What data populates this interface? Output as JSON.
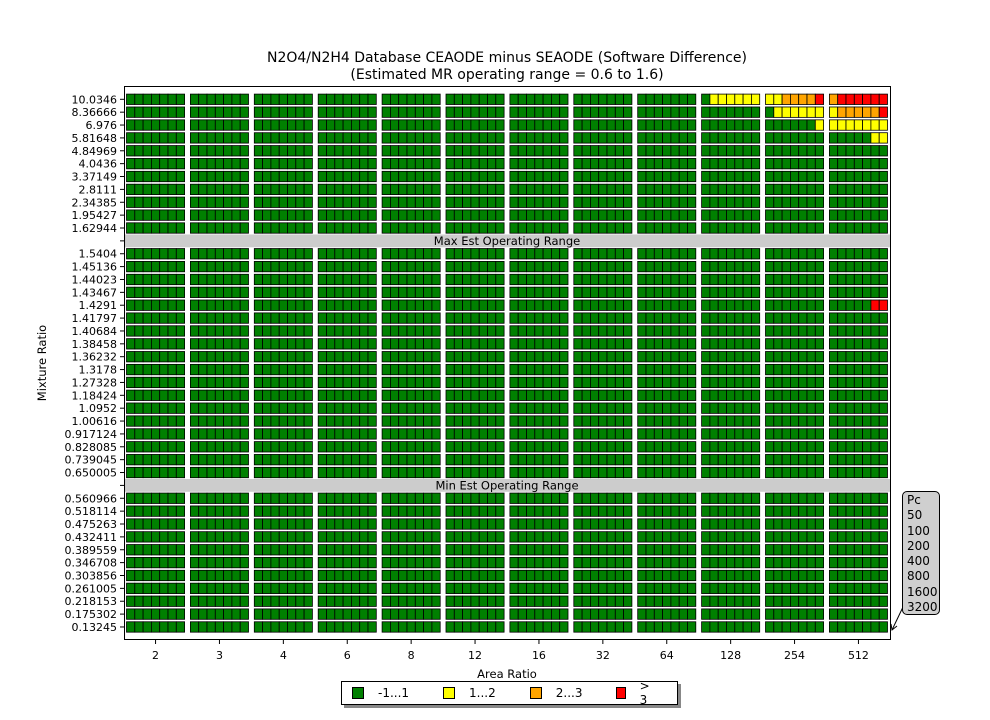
{
  "chart_data": {
    "type": "heatmap",
    "title": "N2O4/N2H4 Database CEAODE minus SEAODE (Software Difference)",
    "subtitle": "(Estimated MR operating range = 0.6 to 1.6)",
    "xlabel": "Area Ratio",
    "ylabel": "Mixture Ratio",
    "area_ratios": [
      "2",
      "3",
      "4",
      "6",
      "8",
      "12",
      "16",
      "32",
      "64",
      "128",
      "254",
      "512"
    ],
    "chamber_pressures_label": "Pc",
    "chamber_pressures": [
      "50",
      "100",
      "200",
      "400",
      "800",
      "1600",
      "3200"
    ],
    "mixture_ratio_groups": [
      [
        "10.0346",
        "8.36666",
        "6.976",
        "5.81648",
        "4.84969",
        "4.0436",
        "3.37149",
        "2.8111",
        "2.34385",
        "1.95427",
        "1.62944"
      ],
      [
        "1.5404",
        "1.45136",
        "1.44023",
        "1.43467",
        "1.4291",
        "1.41797",
        "1.40684",
        "1.38458",
        "1.36232",
        "1.3178",
        "1.27328",
        "1.18424",
        "1.0952",
        "1.00616",
        "0.917124",
        "0.828085",
        "0.739045",
        "0.650005"
      ],
      [
        "0.560966",
        "0.518114",
        "0.475263",
        "0.432411",
        "0.389559",
        "0.346708",
        "0.303856",
        "0.261005",
        "0.218153",
        "0.175302",
        "0.13245"
      ]
    ],
    "band_labels": [
      "Max Est Operating Range",
      "Min Est Operating Range"
    ],
    "legend": [
      {
        "label": "-1...1",
        "color": "#008000"
      },
      {
        "label": "1...2",
        "color": "#ffff00"
      },
      {
        "label": "2...3",
        "color": "#ffa500"
      },
      {
        "label": "> 3",
        "color": "#ff0000"
      }
    ],
    "default_bin": 0,
    "cell_bins": [
      {
        "mr": "10.0346",
        "area_ratio": "128",
        "pc_bins": [
          0,
          1,
          1,
          1,
          1,
          1,
          1
        ]
      },
      {
        "mr": "10.0346",
        "area_ratio": "254",
        "pc_bins": [
          1,
          1,
          2,
          2,
          2,
          2,
          3
        ]
      },
      {
        "mr": "10.0346",
        "area_ratio": "512",
        "pc_bins": [
          2,
          3,
          3,
          3,
          3,
          3,
          3
        ]
      },
      {
        "mr": "8.36666",
        "area_ratio": "254",
        "pc_bins": [
          0,
          1,
          1,
          1,
          1,
          1,
          1
        ]
      },
      {
        "mr": "8.36666",
        "area_ratio": "512",
        "pc_bins": [
          1,
          2,
          2,
          2,
          2,
          2,
          3
        ]
      },
      {
        "mr": "6.976",
        "area_ratio": "254",
        "pc_bins": [
          0,
          0,
          0,
          0,
          0,
          0,
          1
        ]
      },
      {
        "mr": "6.976",
        "area_ratio": "512",
        "pc_bins": [
          1,
          1,
          1,
          1,
          1,
          1,
          1
        ]
      },
      {
        "mr": "5.81648",
        "area_ratio": "512",
        "pc_bins": [
          0,
          0,
          0,
          0,
          0,
          1,
          1
        ]
      },
      {
        "mr": "1.4291",
        "area_ratio": "512",
        "pc_bins": [
          0,
          0,
          0,
          0,
          0,
          3,
          3
        ]
      }
    ]
  }
}
